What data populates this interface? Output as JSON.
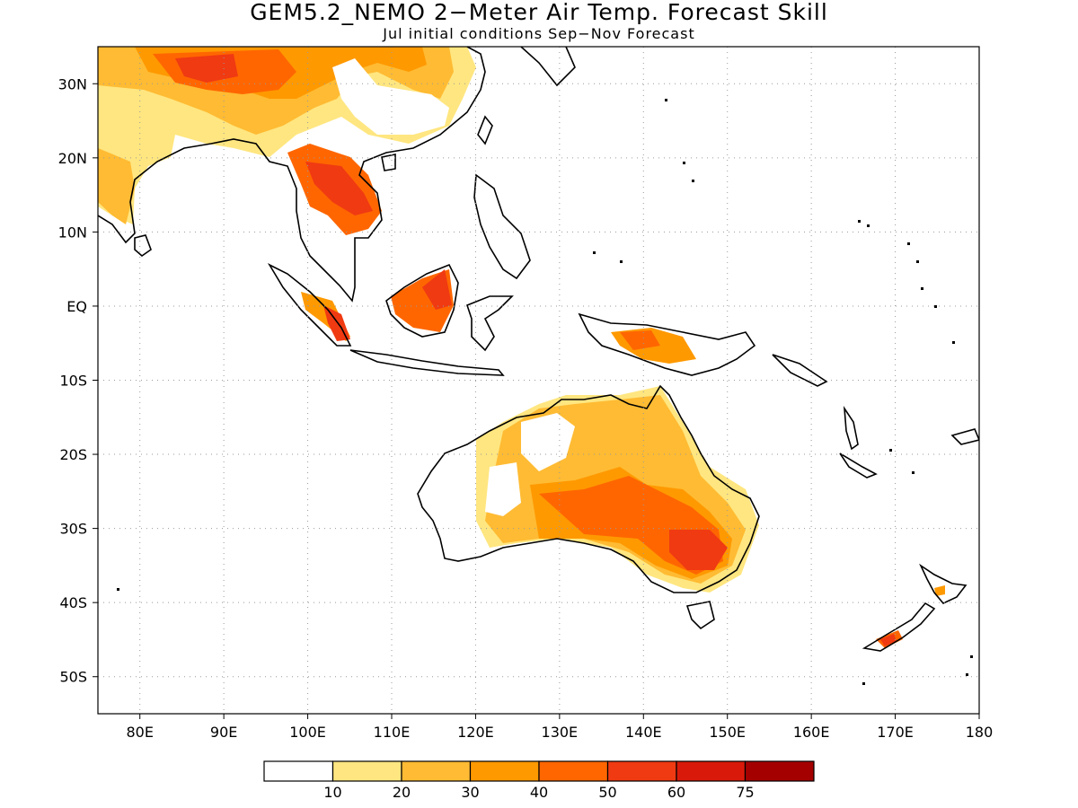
{
  "title": "GEM5.2_NEMO 2−Meter Air Temp. Forecast Skill",
  "subtitle": "Jul initial conditions  Sep−Nov Forecast",
  "map": {
    "projection": "lat-lon",
    "lon_range": [
      75,
      180
    ],
    "lat_range": [
      -55,
      35
    ],
    "gridlines": "dotted",
    "lon_ticks": [
      {
        "value": 80,
        "label": "80E"
      },
      {
        "value": 90,
        "label": "90E"
      },
      {
        "value": 100,
        "label": "100E"
      },
      {
        "value": 110,
        "label": "110E"
      },
      {
        "value": 120,
        "label": "120E"
      },
      {
        "value": 130,
        "label": "130E"
      },
      {
        "value": 140,
        "label": "140E"
      },
      {
        "value": 150,
        "label": "150E"
      },
      {
        "value": 160,
        "label": "160E"
      },
      {
        "value": 170,
        "label": "170E"
      },
      {
        "value": 180,
        "label": "180"
      }
    ],
    "lat_ticks": [
      {
        "value": 30,
        "label": "30N"
      },
      {
        "value": 20,
        "label": "20N"
      },
      {
        "value": 10,
        "label": "10N"
      },
      {
        "value": 0,
        "label": "EQ"
      },
      {
        "value": -10,
        "label": "10S"
      },
      {
        "value": -20,
        "label": "20S"
      },
      {
        "value": -30,
        "label": "30S"
      },
      {
        "value": -40,
        "label": "40S"
      },
      {
        "value": -50,
        "label": "50S"
      }
    ]
  },
  "colorbar": {
    "boundaries": [
      "10",
      "20",
      "30",
      "40",
      "50",
      "60",
      "75"
    ],
    "colors": [
      "#ffffff",
      "#ffe680",
      "#ffbb33",
      "#ff9900",
      "#ff6600",
      "#f03a12",
      "#d91a0a",
      "#a50000"
    ]
  }
}
